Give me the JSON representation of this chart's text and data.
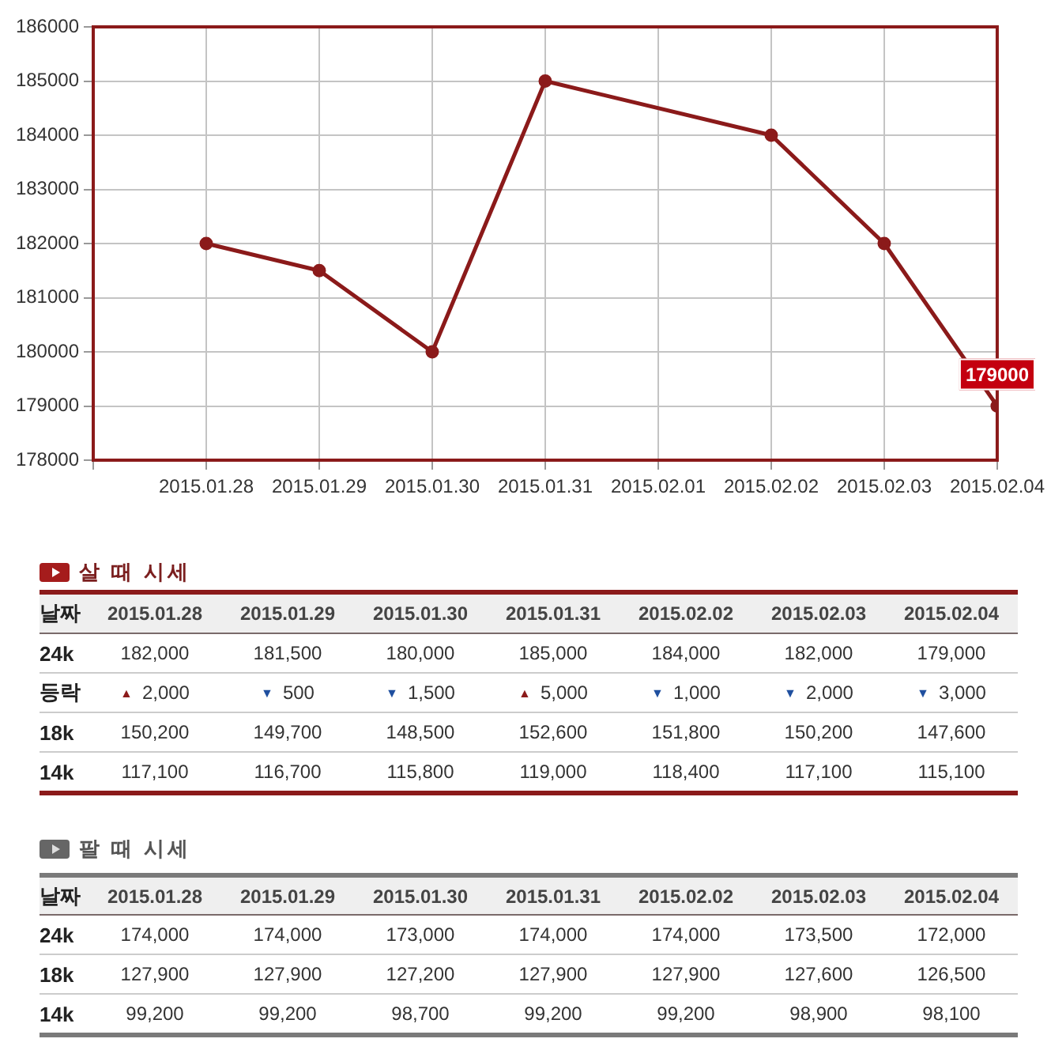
{
  "chart_data": [
    {
      "type": "line",
      "x": [
        "2015-01-28",
        "2015-01-29",
        "2015-01-30",
        "2015-01-31",
        "2015-02-02",
        "2015-02-03",
        "2015-02-04"
      ],
      "series": [
        {
          "color": "#8b1a1a",
          "values": [
            182000,
            181500,
            180000,
            185000,
            184000,
            182000,
            179000
          ]
        }
      ],
      "xlim": [
        "2015-01-27",
        "2015-02-04"
      ],
      "xticks": [
        {
          "value": "2015-01-27",
          "label": null
        },
        {
          "value": "2015-01-28",
          "label": "2015.01.28"
        },
        {
          "value": "2015-01-29",
          "label": "2015.01.29"
        },
        {
          "value": "2015-01-30",
          "label": "2015.01.30"
        },
        {
          "value": "2015-01-31",
          "label": "2015.01.31"
        },
        {
          "value": "2015-02-01",
          "label": "2015.02.01"
        },
        {
          "value": "2015-02-02",
          "label": "2015.02.02"
        },
        {
          "value": "2015-02-03",
          "label": "2015.02.03"
        },
        {
          "value": "2015-02-04",
          "label": "2015.02.04"
        }
      ],
      "ylim": [
        178000,
        186000
      ],
      "yticks": [
        178000,
        179000,
        180000,
        181000,
        182000,
        183000,
        184000,
        185000,
        186000
      ],
      "grid": true,
      "marker": "circle",
      "annotations": [
        {
          "text": "179000",
          "x": "2015-02-04",
          "y": 179000
        }
      ]
    },
    {
      "type": "other",
      "title": "살 때 시세",
      "xlabel": "날짜",
      "categories": [
        "2015.01.28",
        "2015.01.29",
        "2015.01.30",
        "2015.01.31",
        "2015.02.02",
        "2015.02.03",
        "2015.02.04"
      ],
      "series": [
        {
          "name": "24k",
          "values": [
            182000,
            181500,
            180000,
            185000,
            184000,
            182000,
            179000
          ],
          "value_labels": [
            "182,000",
            "181,500",
            "180,000",
            "185,000",
            "184,000",
            "182,000",
            "179,000"
          ]
        },
        {
          "name": "등락",
          "values": [
            2000,
            500,
            1500,
            5000,
            1000,
            2000,
            3000
          ],
          "value_labels": [
            "▲ 2,000",
            "▼ 500",
            "▼ 1,500",
            "▲ 5,000",
            "▼ 1,000",
            "▼ 2,000",
            "▼ 3,000"
          ],
          "colors": [
            "#8b1a1a",
            "#1f4f9f",
            "#1f4f9f",
            "#8b1a1a",
            "#1f4f9f",
            "#1f4f9f",
            "#1f4f9f"
          ]
        },
        {
          "name": "18k",
          "values": [
            150200,
            149700,
            148500,
            152600,
            151800,
            150200,
            147600
          ],
          "value_labels": [
            "150,200",
            "149,700",
            "148,500",
            "152,600",
            "151,800",
            "150,200",
            "147,600"
          ]
        },
        {
          "name": "14k",
          "values": [
            117100,
            116700,
            115800,
            119000,
            118400,
            117100,
            115100
          ],
          "value_labels": [
            "117,100",
            "116,700",
            "115,800",
            "119,000",
            "118,400",
            "117,100",
            "115,100"
          ]
        }
      ]
    },
    {
      "type": "other",
      "title": "팔 때 시세",
      "xlabel": "날짜",
      "categories": [
        "2015.01.28",
        "2015.01.29",
        "2015.01.30",
        "2015.01.31",
        "2015.02.02",
        "2015.02.03",
        "2015.02.04"
      ],
      "series": [
        {
          "name": "24k",
          "values": [
            174000,
            174000,
            173000,
            174000,
            174000,
            173500,
            172000
          ],
          "value_labels": [
            "174,000",
            "174,000",
            "173,000",
            "174,000",
            "174,000",
            "173,500",
            "172,000"
          ]
        },
        {
          "name": "18k",
          "values": [
            127900,
            127900,
            127200,
            127900,
            127900,
            127600,
            126500
          ],
          "value_labels": [
            "127,900",
            "127,900",
            "127,200",
            "127,900",
            "127,900",
            "127,600",
            "126,500"
          ]
        },
        {
          "name": "14k",
          "values": [
            99200,
            99200,
            98700,
            99200,
            99200,
            98900,
            98100
          ],
          "value_labels": [
            "99,200",
            "99,200",
            "98,700",
            "99,200",
            "99,200",
            "98,900",
            "98,100"
          ]
        }
      ]
    }
  ]
}
